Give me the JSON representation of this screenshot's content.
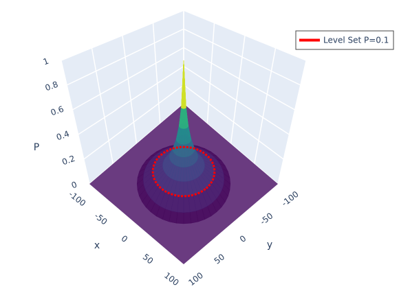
{
  "chart_data": {
    "type": "surface3d",
    "surface": {
      "r": [
        0,
        3,
        6,
        10,
        15,
        20,
        30,
        45,
        60,
        70
      ],
      "P": [
        1,
        0.62,
        0.47,
        0.36,
        0.28,
        0.22,
        0.15,
        0.1,
        0.04,
        0
      ],
      "colorscale": "Viridis"
    },
    "level_set": {
      "name": "Level Set P=0.1",
      "color": "#ff0000",
      "level": 0.1,
      "radius": 45
    },
    "xlabel": "x",
    "ylabel": "y",
    "zlabel": "P",
    "xlim": [
      -100,
      100
    ],
    "ylim": [
      -100,
      100
    ],
    "zlim": [
      0,
      1
    ],
    "xticks": [
      -100,
      -50,
      0,
      50,
      100
    ],
    "yticks": [
      -100,
      -50,
      0,
      50,
      100
    ],
    "zticks": [
      0,
      0.2,
      0.4,
      0.6,
      0.8,
      1
    ],
    "legend": "top-right"
  }
}
